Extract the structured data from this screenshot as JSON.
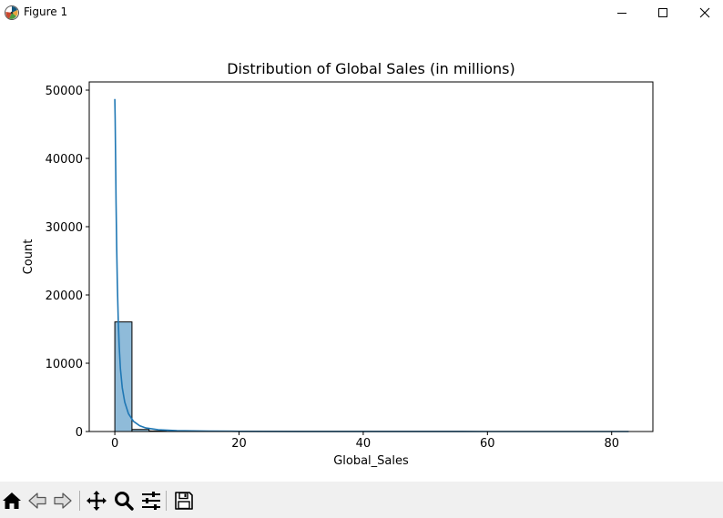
{
  "window": {
    "title": "Figure 1",
    "app_icon": "matplotlib-icon",
    "controls": [
      "minimize-icon",
      "maximize-icon",
      "close-icon"
    ]
  },
  "toolbar": {
    "buttons": [
      "home-icon",
      "back-arrow-icon",
      "forward-arrow-icon",
      "pan-icon",
      "zoom-icon",
      "configure-subplots-icon",
      "save-icon"
    ]
  },
  "chart_data": {
    "type": "bar",
    "title": "Distribution of Global Sales (in millions)",
    "xlabel": "Global_Sales",
    "ylabel": "Count",
    "xlim": [
      -4.12,
      86.64
    ],
    "ylim": [
      0,
      51200
    ],
    "xticks": [
      0,
      20,
      40,
      60,
      80
    ],
    "yticks": [
      0,
      10000,
      20000,
      30000,
      40000,
      50000
    ],
    "bins": {
      "edges": [
        0,
        2.76,
        5.52,
        8.28,
        11.04,
        13.8,
        16.56,
        19.32,
        22.08,
        24.84,
        27.6,
        30.36,
        33.12,
        35.88,
        38.64,
        41.4,
        44.16,
        46.92,
        49.68,
        52.44,
        55.2,
        57.96,
        60.72,
        63.48,
        66.24,
        69.0,
        71.76,
        74.52,
        77.28,
        80.04,
        82.8
      ],
      "counts": [
        16050,
        300,
        80,
        30,
        15,
        8,
        5,
        3,
        2,
        2,
        2,
        1,
        1,
        1,
        1,
        0,
        0,
        0,
        0,
        0,
        0,
        0,
        0,
        0,
        0,
        0,
        0,
        0,
        0,
        1
      ]
    },
    "kde": {
      "x": [
        0,
        0.05,
        0.1,
        0.15,
        0.2,
        0.3,
        0.4,
        0.55,
        0.7,
        0.9,
        1.2,
        1.6,
        2.2,
        3,
        4,
        5,
        7,
        10,
        15,
        20,
        30,
        40,
        60,
        82.74
      ],
      "y": [
        48700,
        46000,
        42000,
        38000,
        33500,
        27000,
        21800,
        16400,
        12600,
        9200,
        6400,
        4300,
        2600,
        1500,
        850,
        520,
        260,
        130,
        60,
        30,
        12,
        6,
        2,
        0
      ]
    },
    "colors": {
      "bar_fill": "#1f77b4",
      "bar_fill_opacity": 0.5,
      "bar_edge": "#000000",
      "kde_line": "#1f77b4"
    },
    "grid": false
  }
}
